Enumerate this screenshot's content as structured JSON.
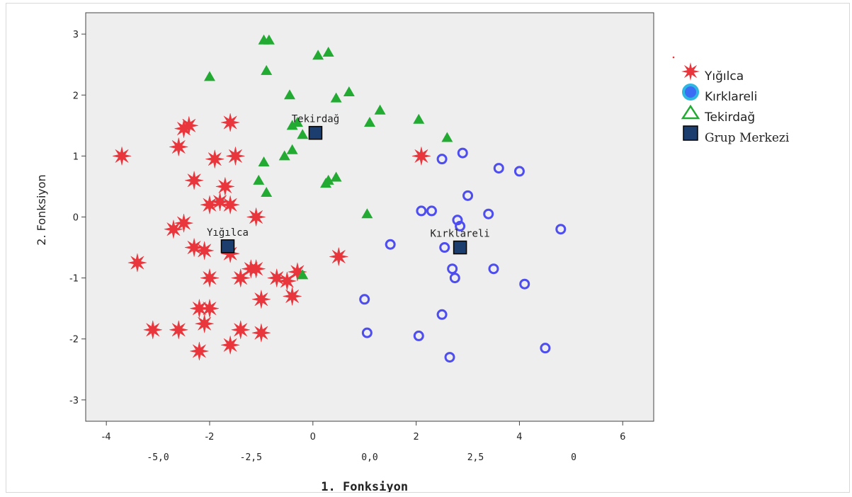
{
  "chart_data": {
    "type": "scatter",
    "xlabel": "1. Fonksiyon",
    "ylabel": "2. Fonksiyon",
    "xlim": [
      -4.4,
      6.6
    ],
    "ylim": [
      -3.35,
      3.35
    ],
    "x_ticks": [
      "-4",
      "-2",
      "0",
      "2",
      "4",
      "6"
    ],
    "x_tick_values": [
      -4,
      -2,
      0,
      2,
      4,
      6
    ],
    "y_ticks": [
      "3",
      "2",
      "1",
      "0",
      "-1",
      "-2",
      "-3"
    ],
    "y_tick_values": [
      3,
      2,
      1,
      0,
      -1,
      -2,
      -3
    ],
    "secondary_x_labels": [
      "-5,0",
      "-2,5",
      "0,0",
      "2,5",
      "0"
    ],
    "secondary_x_positions": [
      -3.0,
      -1.2,
      1.1,
      3.15,
      5.05
    ],
    "grid": false,
    "legend_position": "right",
    "colors": {
      "plot_bg": "#eeeeee",
      "Yığılca": "#e8363c",
      "Kırklareli": "#4d4df0",
      "Tekirdağ": "#22aa33",
      "centroid": "#1c3e6e"
    },
    "series": [
      {
        "name": "Yığılca",
        "marker": "star",
        "points": [
          [
            -3.7,
            1.0
          ],
          [
            -2.5,
            1.45
          ],
          [
            -2.4,
            1.5
          ],
          [
            -2.6,
            1.15
          ],
          [
            -1.6,
            1.55
          ],
          [
            -1.9,
            0.95
          ],
          [
            -1.5,
            1.0
          ],
          [
            -2.3,
            0.6
          ],
          [
            -1.7,
            0.5
          ],
          [
            -2.0,
            0.2
          ],
          [
            -1.8,
            0.25
          ],
          [
            -1.6,
            0.2
          ],
          [
            -1.1,
            0.0
          ],
          [
            -2.5,
            -0.1
          ],
          [
            -2.7,
            -0.2
          ],
          [
            -2.3,
            -0.5
          ],
          [
            -2.1,
            -0.55
          ],
          [
            -1.6,
            -0.6
          ],
          [
            -3.4,
            -0.75
          ],
          [
            -1.2,
            -0.85
          ],
          [
            -1.1,
            -0.85
          ],
          [
            -0.7,
            -1.0
          ],
          [
            -0.5,
            -1.05
          ],
          [
            -0.3,
            -0.9
          ],
          [
            -1.4,
            -1.0
          ],
          [
            -2.0,
            -1.0
          ],
          [
            -0.4,
            -1.3
          ],
          [
            -1.0,
            -1.35
          ],
          [
            -2.2,
            -1.5
          ],
          [
            -2.0,
            -1.5
          ],
          [
            -2.1,
            -1.75
          ],
          [
            -2.6,
            -1.85
          ],
          [
            -3.1,
            -1.85
          ],
          [
            -1.4,
            -1.85
          ],
          [
            -1.0,
            -1.9
          ],
          [
            -1.6,
            -2.1
          ],
          [
            -2.2,
            -2.2
          ],
          [
            0.5,
            -0.65
          ],
          [
            2.1,
            1.0
          ]
        ]
      },
      {
        "name": "Kırklareli",
        "marker": "circle",
        "points": [
          [
            2.5,
            0.95
          ],
          [
            2.9,
            1.05
          ],
          [
            3.6,
            0.8
          ],
          [
            4.0,
            0.75
          ],
          [
            3.0,
            0.35
          ],
          [
            2.1,
            0.1
          ],
          [
            2.3,
            0.1
          ],
          [
            3.4,
            0.05
          ],
          [
            2.8,
            -0.05
          ],
          [
            2.85,
            -0.15
          ],
          [
            4.8,
            -0.2
          ],
          [
            1.5,
            -0.45
          ],
          [
            2.55,
            -0.5
          ],
          [
            2.7,
            -0.85
          ],
          [
            3.5,
            -0.85
          ],
          [
            2.75,
            -1.0
          ],
          [
            4.1,
            -1.1
          ],
          [
            1.0,
            -1.35
          ],
          [
            2.5,
            -1.6
          ],
          [
            1.05,
            -1.9
          ],
          [
            2.05,
            -1.95
          ],
          [
            4.5,
            -2.15
          ],
          [
            2.65,
            -2.3
          ]
        ]
      },
      {
        "name": "Tekirdağ",
        "marker": "triangle",
        "points": [
          [
            -0.95,
            2.9
          ],
          [
            -0.85,
            2.9
          ],
          [
            0.1,
            2.65
          ],
          [
            0.3,
            2.7
          ],
          [
            -2.0,
            2.3
          ],
          [
            -0.9,
            2.4
          ],
          [
            0.7,
            2.05
          ],
          [
            -0.45,
            2.0
          ],
          [
            0.45,
            1.95
          ],
          [
            1.3,
            1.75
          ],
          [
            -0.4,
            1.5
          ],
          [
            -0.3,
            1.55
          ],
          [
            1.1,
            1.55
          ],
          [
            2.05,
            1.6
          ],
          [
            2.6,
            1.3
          ],
          [
            -0.2,
            1.35
          ],
          [
            -0.4,
            1.1
          ],
          [
            -0.55,
            1.0
          ],
          [
            -0.95,
            0.9
          ],
          [
            -1.05,
            0.6
          ],
          [
            0.3,
            0.6
          ],
          [
            0.45,
            0.65
          ],
          [
            0.25,
            0.55
          ],
          [
            -0.9,
            0.4
          ],
          [
            1.05,
            0.05
          ],
          [
            -0.2,
            -0.95
          ]
        ]
      },
      {
        "name": "Grup Merkezi",
        "marker": "square",
        "points": [
          [
            -1.65,
            -0.48
          ],
          [
            0.05,
            1.38
          ],
          [
            2.85,
            -0.5
          ]
        ],
        "labels": [
          "Yığılca",
          "Tekirdağ",
          "Kırklareli"
        ]
      }
    ]
  }
}
